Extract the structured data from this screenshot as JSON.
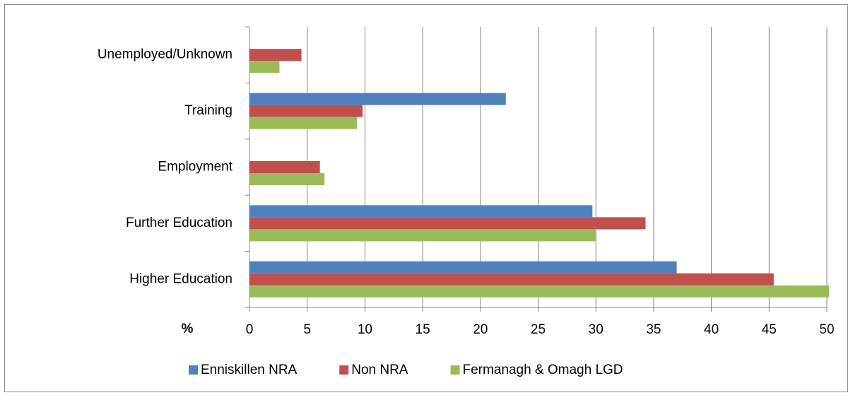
{
  "chart_data": {
    "type": "hbar",
    "x_label": "%",
    "categories": [
      "Higher Education",
      "Further Education",
      "Employment",
      "Training",
      "Unemployed/Unknown"
    ],
    "series": [
      {
        "name": "Enniskillen NRA",
        "color": "#4f81bd",
        "values": [
          37,
          29.7,
          0,
          22.2,
          0
        ]
      },
      {
        "name": "Non NRA",
        "color": "#c0504d",
        "values": [
          45.4,
          34.3,
          6.1,
          9.8,
          4.5
        ]
      },
      {
        "name": "Fermanagh & Omagh LGD",
        "color": "#9bbb59",
        "values": [
          50.2,
          30,
          6.5,
          9.3,
          2.6
        ]
      }
    ],
    "xlim": [
      0,
      50
    ],
    "xticks": [
      0,
      5,
      10,
      15,
      20,
      25,
      30,
      35,
      40,
      45,
      50
    ],
    "grid": true,
    "legend": "bottom"
  }
}
